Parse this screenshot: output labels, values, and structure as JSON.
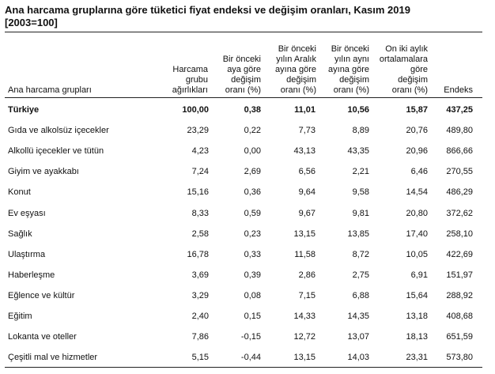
{
  "title": {
    "line1": "Ana harcama gruplarına göre tüketici fiyat endeksi ve değişim oranları, Kasım 2019",
    "line2": "[2003=100]"
  },
  "header": {
    "group": "Ana harcama grupları",
    "columns": [
      "Harcama\ngrubu\nağırlıkları",
      "Bir önceki\naya göre\ndeğişim\noranı (%)",
      "Bir önceki\nyılın Aralık\nayına göre\ndeğişim\noranı (%)",
      "Bir önceki\nyılın aynı\nayına göre\ndeğişim\noranı (%)",
      "On iki aylık\nortalamalara\ngöre\ndeğişim\noranı (%)",
      "Endeks"
    ]
  },
  "rows": [
    {
      "name": "Türkiye",
      "values": [
        "100,00",
        "0,38",
        "11,01",
        "10,56",
        "15,87",
        "437,25"
      ],
      "bold": true
    },
    {
      "name": "Gıda ve alkolsüz içecekler",
      "values": [
        "23,29",
        "0,22",
        "7,73",
        "8,89",
        "20,76",
        "489,80"
      ]
    },
    {
      "name": "Alkollü içecekler ve tütün",
      "values": [
        "4,23",
        "0,00",
        "43,13",
        "43,35",
        "20,96",
        "866,66"
      ]
    },
    {
      "name": "Giyim ve ayakkabı",
      "values": [
        "7,24",
        "2,69",
        "6,56",
        "2,21",
        "6,46",
        "270,55"
      ]
    },
    {
      "name": "Konut",
      "values": [
        "15,16",
        "0,36",
        "9,64",
        "9,58",
        "14,54",
        "486,29"
      ]
    },
    {
      "name": "Ev eşyası",
      "values": [
        "8,33",
        "0,59",
        "9,67",
        "9,81",
        "20,80",
        "372,62"
      ]
    },
    {
      "name": "Sağlık",
      "values": [
        "2,58",
        "0,23",
        "13,15",
        "13,85",
        "17,40",
        "258,10"
      ]
    },
    {
      "name": "Ulaştırma",
      "values": [
        "16,78",
        "0,33",
        "11,58",
        "8,72",
        "10,05",
        "422,69"
      ]
    },
    {
      "name": "Haberleşme",
      "values": [
        "3,69",
        "0,39",
        "2,86",
        "2,75",
        "6,91",
        "151,97"
      ]
    },
    {
      "name": "Eğlence ve kültür",
      "values": [
        "3,29",
        "0,08",
        "7,15",
        "6,88",
        "15,64",
        "288,92"
      ]
    },
    {
      "name": "Eğitim",
      "values": [
        "2,40",
        "0,15",
        "14,33",
        "14,35",
        "13,18",
        "408,68"
      ]
    },
    {
      "name": "Lokanta ve oteller",
      "values": [
        "7,86",
        "-0,15",
        "12,72",
        "13,07",
        "18,13",
        "651,59"
      ]
    },
    {
      "name": "Çeşitli mal ve hizmetler",
      "values": [
        "5,15",
        "-0,44",
        "13,15",
        "14,03",
        "23,31",
        "573,80"
      ]
    }
  ]
}
